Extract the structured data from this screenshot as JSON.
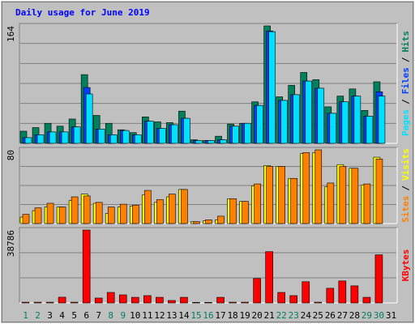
{
  "chart_data": [
    {
      "type": "bar",
      "title": "Daily usage for June 2019",
      "ylim": [
        0,
        164
      ],
      "yticks": [
        164
      ],
      "grid": true,
      "legend_separator": "/",
      "series": [
        {
          "name": "Pages",
          "color": "#00e0ff",
          "values": [
            8,
            12,
            16,
            16,
            23,
            69,
            20,
            12,
            18,
            12,
            31,
            21,
            26,
            35,
            4,
            4,
            5,
            24,
            28,
            53,
            156,
            60,
            68,
            87,
            77,
            42,
            58,
            66,
            38,
            66,
            0
          ]
        },
        {
          "name": "Files",
          "color": "#0040ff",
          "values": [
            8,
            12,
            16,
            16,
            23,
            78,
            20,
            12,
            18,
            12,
            31,
            21,
            26,
            35,
            4,
            4,
            5,
            24,
            28,
            53,
            157,
            60,
            68,
            87,
            77,
            42,
            58,
            66,
            38,
            72,
            0
          ]
        },
        {
          "name": "Hits",
          "color": "#00805c",
          "values": [
            17,
            22,
            28,
            24,
            34,
            96,
            39,
            28,
            19,
            15,
            37,
            30,
            29,
            45,
            5,
            4,
            10,
            27,
            28,
            58,
            164,
            65,
            81,
            99,
            89,
            51,
            66,
            76,
            46,
            86,
            0
          ]
        }
      ]
    },
    {
      "type": "bar",
      "ylim": [
        0,
        80
      ],
      "yticks": [
        80
      ],
      "grid": true,
      "legend_separator": "/",
      "series": [
        {
          "name": "Sites",
          "color": "#ff8000",
          "values": [
            10,
            17,
            22,
            18,
            29,
            30,
            23,
            18,
            21,
            20,
            36,
            26,
            32,
            37,
            2,
            4,
            8,
            27,
            24,
            43,
            62,
            62,
            49,
            77,
            80,
            44,
            62,
            60,
            43,
            70,
            0
          ]
        },
        {
          "name": "Visits",
          "color": "#ffff00",
          "values": [
            7,
            14,
            18,
            18,
            25,
            32,
            22,
            11,
            18,
            19,
            31,
            23,
            29,
            37,
            2,
            3,
            4,
            27,
            24,
            41,
            63,
            62,
            49,
            76,
            77,
            40,
            64,
            60,
            42,
            72,
            0
          ]
        }
      ]
    },
    {
      "type": "bar",
      "ylim": [
        0,
        38786
      ],
      "yticks": [
        38786
      ],
      "grid": true,
      "categories": [
        "1",
        "2",
        "3",
        "4",
        "5",
        "6",
        "7",
        "8",
        "9",
        "10",
        "11",
        "12",
        "13",
        "14",
        "15",
        "16",
        "17",
        "18",
        "19",
        "20",
        "21",
        "22",
        "23",
        "24",
        "25",
        "26",
        "27",
        "28",
        "29",
        "30",
        "31"
      ],
      "category_colors": [
        "#00805c",
        "#00805c",
        "#000000",
        "#000000",
        "#000000",
        "#000000",
        "#000000",
        "#00805c",
        "#00805c",
        "#000000",
        "#000000",
        "#000000",
        "#000000",
        "#000000",
        "#00805c",
        "#00805c",
        "#000000",
        "#000000",
        "#000000",
        "#000000",
        "#000000",
        "#00805c",
        "#00805c",
        "#000000",
        "#000000",
        "#000000",
        "#000000",
        "#000000",
        "#00805c",
        "#00805c",
        "#000000"
      ],
      "series": [
        {
          "name": "KBytes",
          "color": "#ff0000",
          "values": [
            400,
            400,
            400,
            3050,
            400,
            38786,
            2600,
            5600,
            4300,
            3000,
            3900,
            3000,
            1300,
            3000,
            300,
            300,
            3000,
            400,
            400,
            13000,
            27300,
            5600,
            3900,
            11300,
            400,
            7800,
            11700,
            9100,
            3000,
            25600,
            0
          ]
        }
      ]
    }
  ]
}
